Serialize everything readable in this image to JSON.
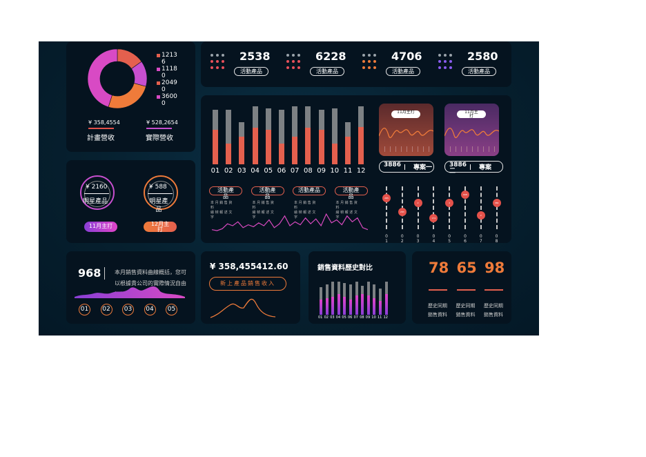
{
  "colors": {
    "accent": "#e4604e",
    "orange": "#ef7b3a",
    "pink": "#e044c8",
    "purple": "#8a3fd6",
    "panel": "#05131f",
    "bg": "#062232"
  },
  "donut": {
    "legend": [
      {
        "value": "1213\n6",
        "color": "#e4604e"
      },
      {
        "value": "1118\n0",
        "color": "#d84ac4"
      },
      {
        "value": "2049\n0",
        "color": "#e4604e"
      },
      {
        "value": "3600\n0",
        "color": "#d84ac4"
      }
    ],
    "slices": [
      12136,
      11180,
      20490,
      36000
    ],
    "planned_amount": "¥ 358,4554",
    "planned_label": "計畫營收",
    "actual_amount": "¥ 528,2654",
    "actual_label": "實際營收"
  },
  "kpis": [
    {
      "value": "2538",
      "label": "活動產品",
      "dot_color": "#e8505b"
    },
    {
      "value": "6228",
      "label": "活動產品",
      "dot_color": "#e8505b"
    },
    {
      "value": "4706",
      "label": "活動產品",
      "dot_color": "#ef7b3a"
    },
    {
      "value": "2580",
      "label": "活動產品",
      "dot_color": "#8a5cf0"
    }
  ],
  "monthly": {
    "months": [
      "01",
      "02",
      "03",
      "04",
      "05",
      "06",
      "07",
      "08",
      "09",
      "10",
      "11",
      "12"
    ],
    "totals": [
      82,
      82,
      64,
      88,
      84,
      82,
      88,
      88,
      82,
      84,
      64,
      88
    ],
    "values": [
      52,
      31,
      42,
      55,
      52,
      31,
      42,
      55,
      52,
      31,
      42,
      56
    ]
  },
  "products": [
    {
      "title": "活動產\n品",
      "desc": "本 月 銷 售 資\n料\n繪 幀 報 述 文\n字"
    },
    {
      "title": "活動產\n品",
      "desc": "本 月 銷 售 資\n料\n繪 幀 報 述 文\n字"
    },
    {
      "title": "活動產品",
      "desc": "本 月 銷 售 資\n料\n繪 幀 報 述 文\n字"
    },
    {
      "title": "活動產\n品",
      "desc": "本 月 銷 售 資\n料\n繪 幀 報 述 文\n字"
    }
  ],
  "sparkline": [
    8,
    7,
    9,
    14,
    12,
    16,
    10,
    13,
    11,
    15,
    12,
    18,
    10,
    14,
    22,
    12,
    16,
    13,
    20,
    14,
    19,
    12,
    24,
    15,
    18,
    13,
    22,
    16,
    20,
    10,
    8
  ],
  "cases": [
    {
      "tag": "11月主打",
      "value": "3886",
      "label": "專案一"
    },
    {
      "tag": "11月主\n打",
      "value": "3886\n二",
      "label": "專案"
    }
  ],
  "sliders": {
    "labels": [
      "0\n1",
      "0\n2",
      "0\n3",
      "0\n4",
      "0\n5",
      "0\n6",
      "0\n7",
      "0\n8"
    ],
    "levels": [
      0.72,
      0.4,
      0.62,
      0.26,
      0.62,
      0.8,
      0.32,
      0.62
    ],
    "knob_text": [
      "285",
      "283",
      "2",
      "174",
      "2",
      "608",
      "2",
      "386"
    ]
  },
  "stars": [
    {
      "amount": "¥ 2160",
      "label": "明星產品",
      "ring": "#c84fcf"
    },
    {
      "amount": "¥ 588",
      "label": "明星產\n品",
      "ring": "#ef7b3a"
    }
  ],
  "star_buttons": [
    "11月主打",
    "12月主\n打"
  ],
  "summary": {
    "count": "968",
    "text": "本月銷售資料曲線概括，您可\n以根據貴公司的實際情況自由\n添加資料",
    "steps": [
      "01",
      "02",
      "03",
      "04",
      "05"
    ]
  },
  "new_products": {
    "amount": "¥ 358,455412.60",
    "button": "新上產品銷售收入"
  },
  "history": {
    "title": "銷售資料歷史對比",
    "months": [
      "01",
      "02",
      "03",
      "04",
      "05",
      "06",
      "07",
      "08",
      "09",
      "10",
      "11",
      "12"
    ],
    "totals": [
      40,
      44,
      48,
      48,
      46,
      44,
      48,
      42,
      48,
      44,
      38,
      48
    ],
    "values": [
      22,
      24,
      26,
      30,
      26,
      22,
      28,
      30,
      28,
      24,
      20,
      30
    ]
  },
  "compare": [
    {
      "value": "78",
      "label": "歷史同期\n銷售資料"
    },
    {
      "value": "65",
      "label": "歷史同期\n銷售資料"
    },
    {
      "value": "98",
      "label": "歷史同期\n銷售資料"
    }
  ]
}
